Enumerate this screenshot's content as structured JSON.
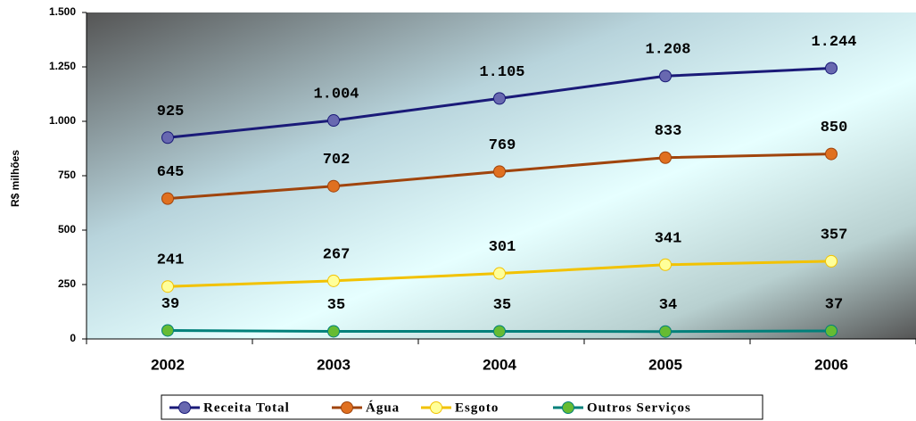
{
  "chart_data": {
    "type": "line",
    "ylabel": "R$ milhões",
    "categories": [
      "2002",
      "2003",
      "2004",
      "2005",
      "2006"
    ],
    "ylim": [
      0,
      1500
    ],
    "yticks": [
      0,
      250,
      500,
      750,
      {
        "value": 1000,
        "label": "1.000"
      },
      {
        "value": 1250,
        "label": "1.250"
      },
      {
        "value": 1500,
        "label": "1.500"
      }
    ],
    "legend": "bottom",
    "series": [
      {
        "name": "Receita Total",
        "color": "#1a1a78",
        "marker_color": "#6868b0",
        "values": [
          925,
          1004,
          1105,
          1208,
          1244
        ],
        "value_labels": [
          "925",
          "1.004",
          "1.105",
          "1.208",
          "1.244"
        ]
      },
      {
        "name": "Água",
        "color": "#a0440c",
        "marker_color": "#e07020",
        "values": [
          645,
          702,
          769,
          833,
          850
        ]
      },
      {
        "name": "Esgoto",
        "color": "#f2c200",
        "marker_color": "#ffff99",
        "values": [
          241,
          267,
          301,
          341,
          357
        ]
      },
      {
        "name": "Outros Serviços",
        "color": "#00807a",
        "marker_color": "#66bb33",
        "values": [
          39,
          35,
          35,
          34,
          37
        ]
      }
    ]
  }
}
